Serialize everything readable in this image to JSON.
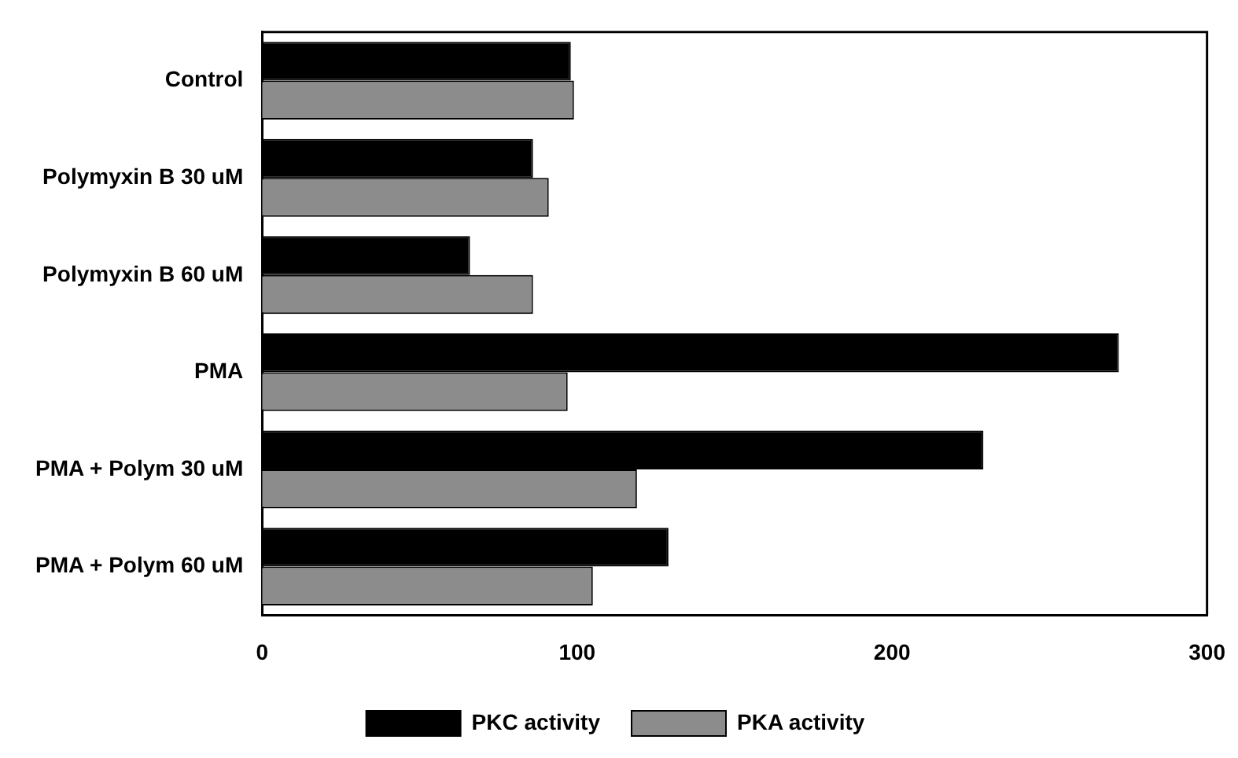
{
  "chart_data": {
    "type": "bar",
    "orientation": "horizontal",
    "categories": [
      "Control",
      "Polymyxin B 30 uM",
      "Polymyxin B 60 uM",
      "PMA",
      "PMA + Polym 30 uM",
      "PMA + Polym 60 uM"
    ],
    "series": [
      {
        "name": "PKC activity",
        "color": "#000000",
        "values": [
          98,
          86,
          66,
          272,
          229,
          129
        ]
      },
      {
        "name": "PKA activity",
        "color": "#8c8c8c",
        "values": [
          99,
          91,
          86,
          97,
          119,
          105
        ]
      }
    ],
    "xlim": [
      0,
      300
    ],
    "xticks": [
      0,
      100,
      200,
      300
    ],
    "grid": false,
    "legend": "bottom"
  }
}
